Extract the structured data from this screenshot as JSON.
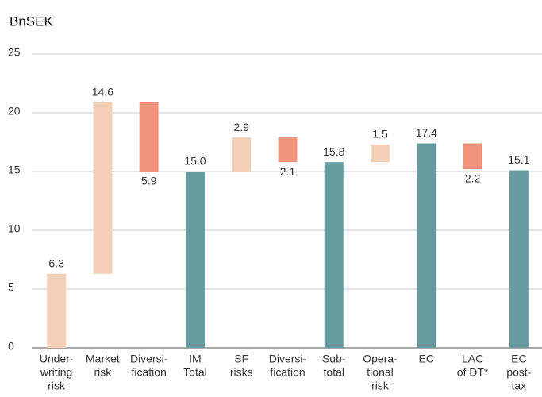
{
  "chart_data": {
    "type": "waterfall",
    "y_label": "BnSEK",
    "categories": [
      [
        "Under-",
        "writing",
        "risk"
      ],
      [
        "Market",
        "risk"
      ],
      [
        "Diversi-",
        "fication"
      ],
      [
        "IM",
        "Total"
      ],
      [
        "SF",
        "risks"
      ],
      [
        "Diversi-",
        "fication"
      ],
      [
        "Sub-",
        "total"
      ],
      [
        "Opera-",
        "tional",
        "risk"
      ],
      [
        "EC"
      ],
      [
        "LAC",
        "of DT*"
      ],
      [
        "EC",
        "post-",
        "tax"
      ]
    ],
    "values": [
      6.3,
      14.6,
      5.9,
      15.0,
      2.9,
      2.1,
      15.8,
      1.5,
      17.4,
      2.2,
      15.1
    ],
    "value_labels": [
      "6.3",
      "14.6",
      "5.9",
      "15.0",
      "2.9",
      "2.1",
      "15.8",
      "1.5",
      "17.4",
      "2.2",
      "15.1"
    ],
    "kinds": [
      "increase",
      "increase",
      "decrease",
      "total",
      "increase",
      "decrease",
      "total",
      "increase",
      "total",
      "decrease",
      "total"
    ],
    "colors": {
      "increase": "#f5d0b9",
      "decrease": "#f0937c",
      "total": "#669c9f"
    },
    "ylim": [
      0,
      25
    ],
    "yticks": [
      0,
      5,
      10,
      15,
      20,
      25
    ],
    "grid": true
  }
}
